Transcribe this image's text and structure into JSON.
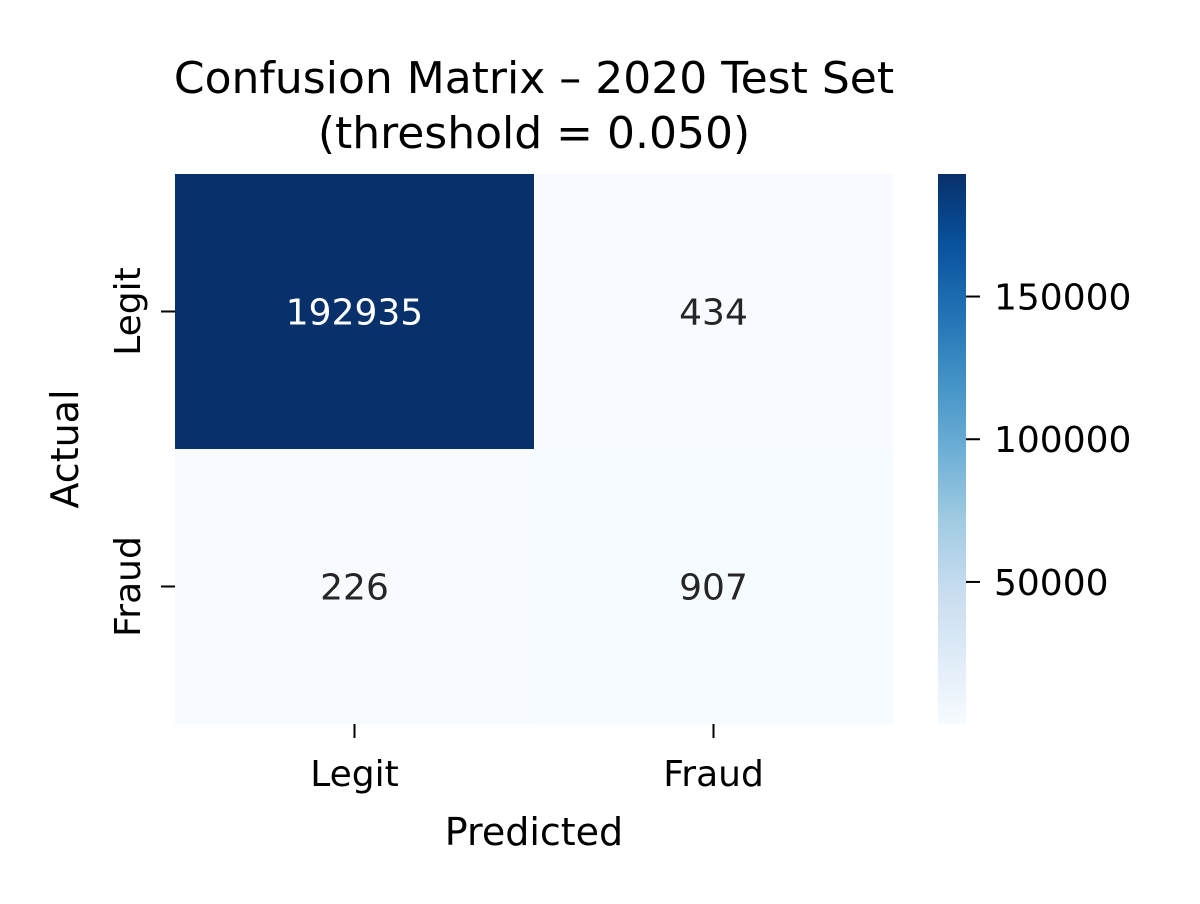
{
  "chart_data": {
    "type": "heatmap",
    "title": "Confusion Matrix – 2020 Test Set",
    "subtitle": "(threshold = 0.050)",
    "xlabel": "Predicted",
    "ylabel": "Actual",
    "x_categories": [
      "Legit",
      "Fraud"
    ],
    "y_categories": [
      "Legit",
      "Fraud"
    ],
    "values": [
      [
        192935,
        434
      ],
      [
        226,
        907
      ]
    ],
    "colormap": "Blues",
    "colorbar": {
      "ticks": [
        50000,
        100000,
        150000
      ],
      "tick_labels": [
        "50000",
        "100000",
        "150000"
      ],
      "range": [
        226,
        192935
      ]
    },
    "colors": {
      "low": "#f7fbff",
      "high": "#08306b",
      "annotation_dark_text": "#262626",
      "annotation_light_text": "#ffffff"
    },
    "grid": false
  }
}
